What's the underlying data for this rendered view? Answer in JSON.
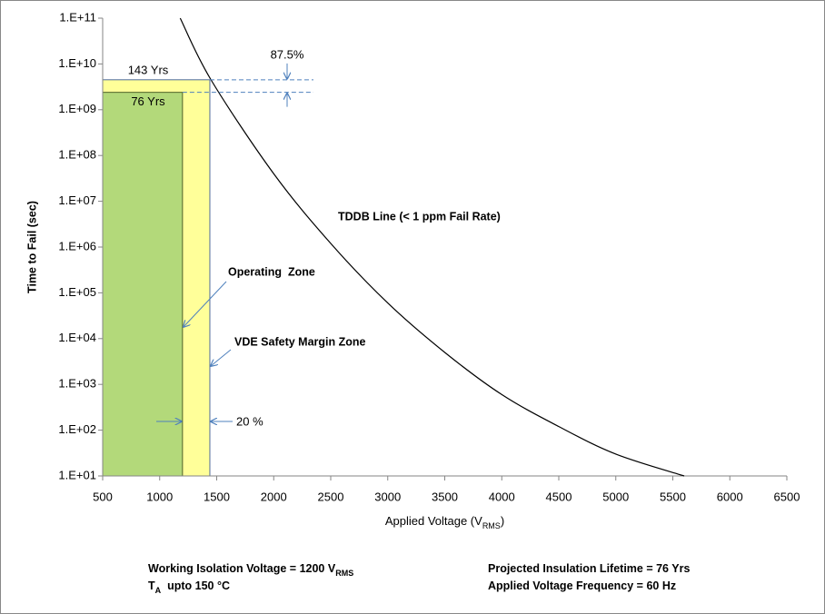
{
  "chart_data": {
    "type": "line",
    "y_label": "Time to Fail (sec)",
    "x_label": {
      "parts": [
        {
          "text": "Applied Voltage (V"
        },
        {
          "sub": "RMS"
        },
        {
          "text": ")"
        }
      ]
    },
    "y_scale": "log",
    "xlim": [
      500,
      6500
    ],
    "xticks": [
      500,
      1000,
      1500,
      2000,
      2500,
      3000,
      3500,
      4000,
      4500,
      5000,
      5500,
      6000,
      6500
    ],
    "ylim": [
      10,
      100000000000
    ],
    "yticks": [
      {
        "value": 10,
        "label": "1.E+01"
      },
      {
        "value": 100,
        "label": "1.E+02"
      },
      {
        "value": 1000,
        "label": "1.E+03"
      },
      {
        "value": 10000,
        "label": "1.E+04"
      },
      {
        "value": 100000,
        "label": "1.E+05"
      },
      {
        "value": 1000000,
        "label": "1.E+06"
      },
      {
        "value": 10000000,
        "label": "1.E+07"
      },
      {
        "value": 100000000,
        "label": "1.E+08"
      },
      {
        "value": 1000000000,
        "label": "1.E+09"
      },
      {
        "value": 10000000000,
        "label": "1.E+10"
      },
      {
        "value": 100000000000,
        "label": "1.E+11"
      }
    ],
    "series": [
      {
        "name": "TDDB Line (< 1 ppm Fail Rate)",
        "color": "#000000",
        "x": [
          1180,
          1450,
          2000,
          2500,
          3000,
          3500,
          4000,
          4500,
          5000,
          5600
        ],
        "values": [
          100000000000,
          4500000000,
          40000000,
          1200000,
          60000,
          5000,
          600,
          120,
          30,
          10
        ]
      }
    ],
    "zones": [
      {
        "name": "Operating  Zone",
        "xlim": [
          500,
          1200
        ],
        "value": 2398000000,
        "value_label": "76 Yrs",
        "color": "#b3d97a"
      },
      {
        "name": "VDE Safety Margin Zone",
        "xlim": [
          500,
          1440
        ],
        "value": 4513000000,
        "value_label": "143 Yrs",
        "color": "#ffff99"
      }
    ],
    "annotations": [
      "87.5%",
      "20 %"
    ],
    "footnotes": [
      {
        "parts": [
          {
            "text": "Working Isolation Voltage = 1200 V"
          },
          {
            "sub": "RMS"
          }
        ]
      },
      {
        "parts": [
          {
            "text": "T"
          },
          {
            "sub": "A"
          },
          {
            "text": "  upto 150 °C"
          }
        ]
      },
      {
        "parts": [
          {
            "text": "Projected Insulation Lifetime = 76 Yrs"
          }
        ]
      },
      {
        "parts": [
          {
            "text": "Applied Voltage Frequency = 60 Hz"
          }
        ]
      }
    ]
  }
}
